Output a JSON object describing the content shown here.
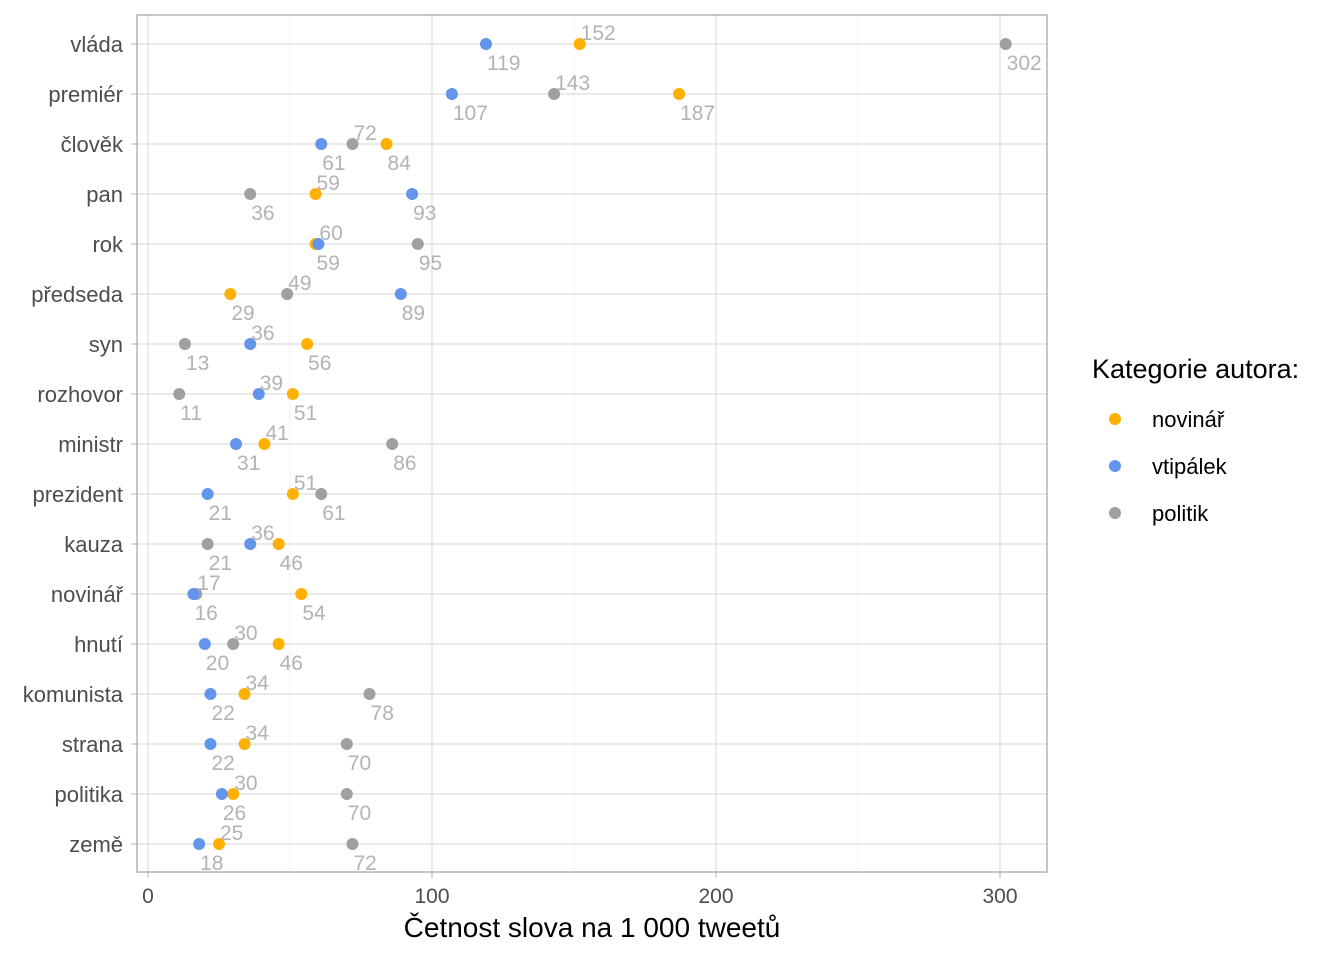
{
  "chart_data": {
    "type": "scatter",
    "title": "",
    "xlabel": "Četnost slova na 1 000 tweetů",
    "ylabel": "",
    "xlim": [
      -4,
      316
    ],
    "xticks": [
      0,
      100,
      200,
      300
    ],
    "grid": true,
    "legend": {
      "title": "Kategorie autora:",
      "placement": "right"
    },
    "categories": [
      "vláda",
      "premiér",
      "člověk",
      "pan",
      "rok",
      "předseda",
      "syn",
      "rozhovor",
      "ministr",
      "prezident",
      "kauza",
      "novinář",
      "hnutí",
      "komunista",
      "strana",
      "politika",
      "země"
    ],
    "series": [
      {
        "name": "novinář",
        "color": "#FFB000",
        "values": [
          152,
          187,
          84,
          59,
          59,
          29,
          56,
          51,
          41,
          51,
          46,
          54,
          46,
          34,
          34,
          30,
          25
        ]
      },
      {
        "name": "vtipálek",
        "color": "#6495ED",
        "values": [
          119,
          107,
          61,
          93,
          60,
          89,
          36,
          39,
          31,
          21,
          36,
          16,
          20,
          22,
          22,
          26,
          18
        ]
      },
      {
        "name": "politik",
        "color": "#A0A0A0",
        "values": [
          302,
          143,
          72,
          36,
          95,
          49,
          13,
          11,
          86,
          61,
          21,
          17,
          30,
          78,
          70,
          70,
          72
        ]
      }
    ]
  }
}
